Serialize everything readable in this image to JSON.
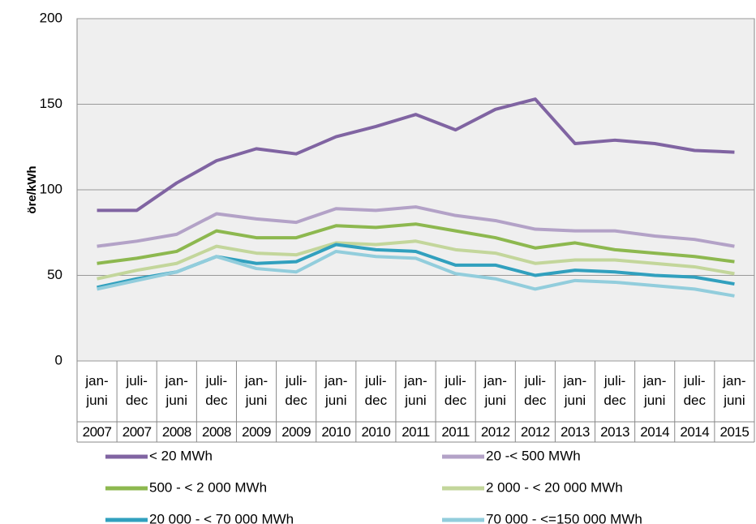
{
  "chart_data": {
    "type": "line",
    "y_label": "öre/kWh",
    "categories": [
      "jan-juni",
      "juli-dec",
      "jan-juni",
      "juli-dec",
      "jan-juni",
      "juli-dec",
      "jan-juni",
      "juli-dec",
      "jan-juni",
      "juli-dec",
      "jan-juni",
      "juli-dec",
      "jan-juni",
      "juli-dec",
      "jan-juni",
      "juli-dec",
      "jan-juni"
    ],
    "years": [
      "2007",
      "2007",
      "2008",
      "2008",
      "2009",
      "2009",
      "2010",
      "2010",
      "2011",
      "2011",
      "2012",
      "2012",
      "2013",
      "2013",
      "2014",
      "2014",
      "2015"
    ],
    "ylim": [
      0,
      200
    ],
    "yticks": [
      0,
      50,
      100,
      150,
      200
    ],
    "grid": true,
    "series": [
      {
        "name": "< 20 MWh",
        "color": "#8064a2",
        "values": [
          88,
          88,
          104,
          117,
          124,
          121,
          131,
          137,
          144,
          135,
          147,
          153,
          127,
          129,
          127,
          123,
          122
        ]
      },
      {
        "name": "20 -< 500 MWh",
        "color": "#b3a2c7",
        "values": [
          67,
          70,
          74,
          86,
          83,
          81,
          89,
          88,
          90,
          85,
          82,
          77,
          76,
          76,
          73,
          71,
          67
        ]
      },
      {
        "name": "500 - < 2 000 MWh",
        "color": "#8db84f",
        "values": [
          57,
          60,
          64,
          76,
          72,
          72,
          79,
          78,
          80,
          76,
          72,
          66,
          69,
          65,
          63,
          61,
          58
        ]
      },
      {
        "name": "2 000 - < 20 000 MWh",
        "color": "#c3d69b",
        "values": [
          48,
          53,
          57,
          67,
          63,
          62,
          69,
          68,
          70,
          65,
          63,
          57,
          59,
          59,
          57,
          55,
          51
        ]
      },
      {
        "name": "20 000 - < 70 000 MWh",
        "color": "#31a0be",
        "values": [
          43,
          48,
          52,
          61,
          57,
          58,
          68,
          65,
          64,
          56,
          56,
          50,
          53,
          52,
          50,
          49,
          45
        ]
      },
      {
        "name": "70 000 - <=150 000 MWh",
        "color": "#92cddc",
        "values": [
          42,
          47,
          52,
          61,
          54,
          52,
          64,
          61,
          60,
          51,
          48,
          42,
          47,
          46,
          44,
          42,
          38
        ]
      }
    ]
  }
}
